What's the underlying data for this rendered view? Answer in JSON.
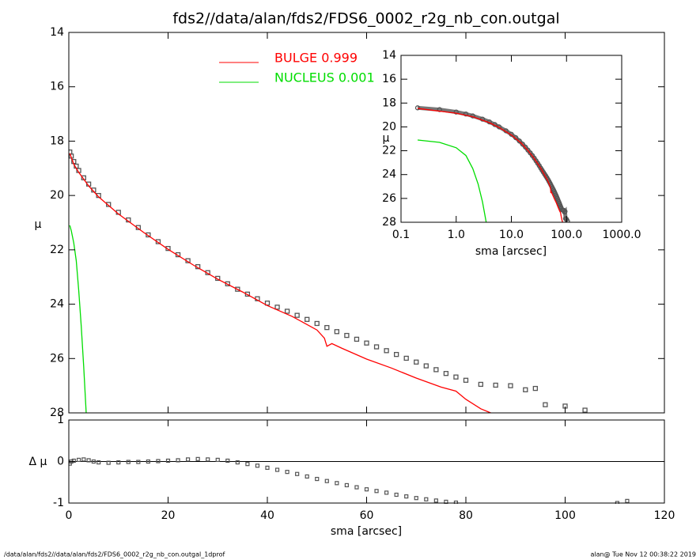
{
  "chart_data": [
    {
      "type": "line",
      "title": "fds2//data/alan/fds2/FDS6_0002_r2g_nb_con.outgal",
      "ylabel": "μ",
      "xlim": [
        0,
        120
      ],
      "ylim": [
        14,
        28
      ],
      "yreverse": true,
      "yticks": [
        14,
        16,
        18,
        20,
        22,
        24,
        26,
        28
      ],
      "series": [
        {
          "style": "points",
          "color": "#555555",
          "x": [
            0.2,
            0.5,
            1,
            1.5,
            2,
            3,
            4,
            5,
            6,
            8,
            10,
            12,
            14,
            16,
            18,
            20,
            22,
            24,
            26,
            28,
            30,
            32,
            34,
            36,
            38,
            40,
            42,
            44,
            46,
            48,
            50,
            52,
            54,
            56,
            58,
            60,
            62,
            64,
            66,
            68,
            70,
            72,
            74,
            76,
            78,
            80,
            83,
            86,
            89,
            92,
            94,
            96,
            100,
            104
          ],
          "values": [
            18.4,
            18.55,
            18.75,
            18.92,
            19.08,
            19.35,
            19.58,
            19.8,
            20.0,
            20.33,
            20.62,
            20.9,
            21.18,
            21.45,
            21.7,
            21.95,
            22.18,
            22.4,
            22.62,
            22.84,
            23.05,
            23.25,
            23.45,
            23.63,
            23.8,
            23.96,
            24.11,
            24.26,
            24.41,
            24.56,
            24.71,
            24.86,
            25.01,
            25.15,
            25.29,
            25.43,
            25.57,
            25.71,
            25.85,
            25.99,
            26.13,
            26.27,
            26.41,
            26.55,
            26.68,
            26.8,
            26.95,
            26.98,
            27.0,
            27.15,
            27.1,
            27.7,
            27.75,
            27.9
          ]
        },
        {
          "name": "BULGE  0.999",
          "style": "line",
          "color": "#ff0000",
          "x": [
            0.2,
            1,
            2,
            4,
            6,
            10,
            15,
            20,
            25,
            30,
            35,
            40,
            45,
            50,
            51.5,
            52,
            53,
            55,
            60,
            65,
            70,
            75,
            78,
            80,
            83,
            85
          ],
          "values": [
            18.45,
            18.85,
            19.15,
            19.65,
            20.05,
            20.68,
            21.35,
            21.98,
            22.55,
            23.08,
            23.55,
            24.05,
            24.45,
            24.95,
            25.25,
            25.55,
            25.45,
            25.62,
            26.02,
            26.35,
            26.72,
            27.05,
            27.2,
            27.5,
            27.85,
            28.0
          ]
        },
        {
          "name": "NUCLEUS  0.001",
          "style": "line",
          "color": "#00dd00",
          "x": [
            0.2,
            0.5,
            1,
            1.5,
            2,
            2.5,
            3,
            3.5
          ],
          "values": [
            21.1,
            21.3,
            21.75,
            22.4,
            23.5,
            24.8,
            26.3,
            28.0
          ]
        }
      ]
    },
    {
      "type": "scatter",
      "xlabel": "sma [arcsec]",
      "ylabel": "Δ μ",
      "color": "#555555",
      "xlim": [
        0,
        120
      ],
      "xticks": [
        0,
        20,
        40,
        60,
        80,
        100,
        120
      ],
      "ylim": [
        -1,
        1
      ],
      "yticks": [
        -1,
        0,
        1
      ],
      "zero_line": true,
      "x": [
        0.2,
        0.5,
        1,
        2,
        3,
        4,
        5,
        6,
        8,
        10,
        12,
        14,
        16,
        18,
        20,
        22,
        24,
        26,
        28,
        30,
        32,
        34,
        36,
        38,
        40,
        42,
        44,
        46,
        48,
        50,
        52,
        54,
        56,
        58,
        60,
        62,
        64,
        66,
        68,
        70,
        72,
        74,
        76,
        78,
        110.5,
        112.5
      ],
      "values": [
        -0.05,
        0.0,
        0.02,
        0.04,
        0.05,
        0.03,
        0.0,
        -0.02,
        -0.03,
        -0.02,
        -0.01,
        -0.01,
        0.0,
        0.01,
        0.02,
        0.03,
        0.05,
        0.06,
        0.05,
        0.04,
        0.02,
        -0.02,
        -0.06,
        -0.1,
        -0.15,
        -0.2,
        -0.25,
        -0.3,
        -0.36,
        -0.42,
        -0.47,
        -0.52,
        -0.57,
        -0.62,
        -0.67,
        -0.71,
        -0.75,
        -0.8,
        -0.84,
        -0.88,
        -0.91,
        -0.94,
        -0.97,
        -0.99,
        -1.0,
        -0.95
      ]
    },
    {
      "type": "line",
      "xlog": true,
      "xlabel": "sma [arcsec]",
      "ylabel": "μ",
      "xlim": [
        0.1,
        1000
      ],
      "xticks": [
        0.1,
        {
          "value": 1,
          "label": "1.0"
        },
        {
          "value": 10,
          "label": "10.0"
        },
        {
          "value": 100,
          "label": "100.0"
        },
        {
          "value": 1000,
          "label": "1000.0"
        }
      ],
      "ylim": [
        14,
        28
      ],
      "yreverse": true,
      "yticks": [
        14,
        16,
        18,
        20,
        22,
        24,
        26,
        28
      ]
    }
  ],
  "footer": {
    "left": "/data/alan/fds2//data/alan/fds2/FDS6_0002_r2g_nb_con.outgal_1dprof",
    "right": "alan@  Tue Nov 12 00:38:22 2019"
  }
}
